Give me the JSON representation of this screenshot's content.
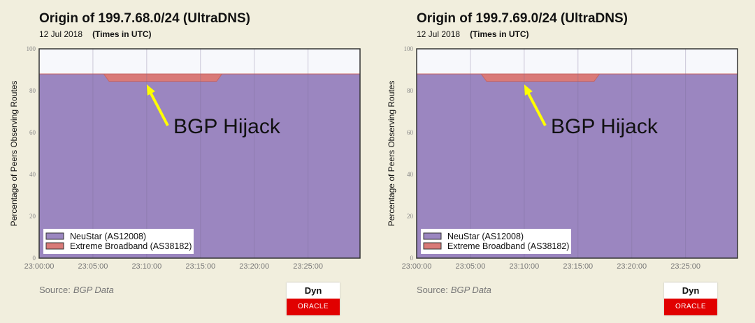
{
  "chart_data": [
    {
      "type": "area",
      "stacked": true,
      "title": "Origin of 199.7.68.0/24 (UltraDNS)",
      "date": "12 Jul 2018",
      "time_note": "(Times in UTC)",
      "ylabel": "Percentage of Peers Observing Routes",
      "ylim": [
        0,
        100
      ],
      "yticks": [
        0,
        20,
        40,
        60,
        80,
        100
      ],
      "xlim": [
        "23:00:00",
        "23:29:50"
      ],
      "xticks": [
        "23:00:00",
        "23:05:00",
        "23:10:00",
        "23:15:00",
        "23:20:00",
        "23:25:00"
      ],
      "x": [
        "23:00:00",
        "23:06:00",
        "23:06:30",
        "23:16:30",
        "23:17:00",
        "23:29:50"
      ],
      "series": [
        {
          "name": "NeuStar (AS12008)",
          "color": "#9b86c0",
          "values": [
            88,
            88,
            84.5,
            84.5,
            88,
            88
          ]
        },
        {
          "name": "Extreme Broadband (AS38182)",
          "color": "#d97a78",
          "values": [
            0,
            0,
            3.5,
            3.5,
            0,
            0
          ]
        }
      ],
      "legend": "bottom-left",
      "grid": true,
      "annotation": {
        "text": "BGP Hijack",
        "color": "#ffff00",
        "points_to": "23:10:00"
      }
    },
    {
      "type": "area",
      "stacked": true,
      "title": "Origin of 199.7.69.0/24 (UltraDNS)",
      "date": "12 Jul 2018",
      "time_note": "(Times in UTC)",
      "ylabel": "Percentage of Peers Observing Routes",
      "ylim": [
        0,
        100
      ],
      "yticks": [
        0,
        20,
        40,
        60,
        80,
        100
      ],
      "xlim": [
        "23:00:00",
        "23:29:50"
      ],
      "xticks": [
        "23:00:00",
        "23:05:00",
        "23:10:00",
        "23:15:00",
        "23:20:00",
        "23:25:00"
      ],
      "x": [
        "23:00:00",
        "23:06:00",
        "23:06:30",
        "23:16:30",
        "23:17:00",
        "23:29:50"
      ],
      "series": [
        {
          "name": "NeuStar (AS12008)",
          "color": "#9b86c0",
          "values": [
            88,
            88,
            84.5,
            84.5,
            88,
            88
          ]
        },
        {
          "name": "Extreme Broadband (AS38182)",
          "color": "#d97a78",
          "values": [
            0,
            0,
            3.5,
            3.5,
            0,
            0
          ]
        }
      ],
      "legend": "bottom-left",
      "grid": true,
      "annotation": {
        "text": "BGP Hijack",
        "color": "#ffff00",
        "points_to": "23:10:00"
      }
    }
  ],
  "footer": {
    "source_label": "Source:",
    "source_value": "BGP Data",
    "logo_top": "Dyn",
    "logo_bottom": "ORACLE"
  }
}
